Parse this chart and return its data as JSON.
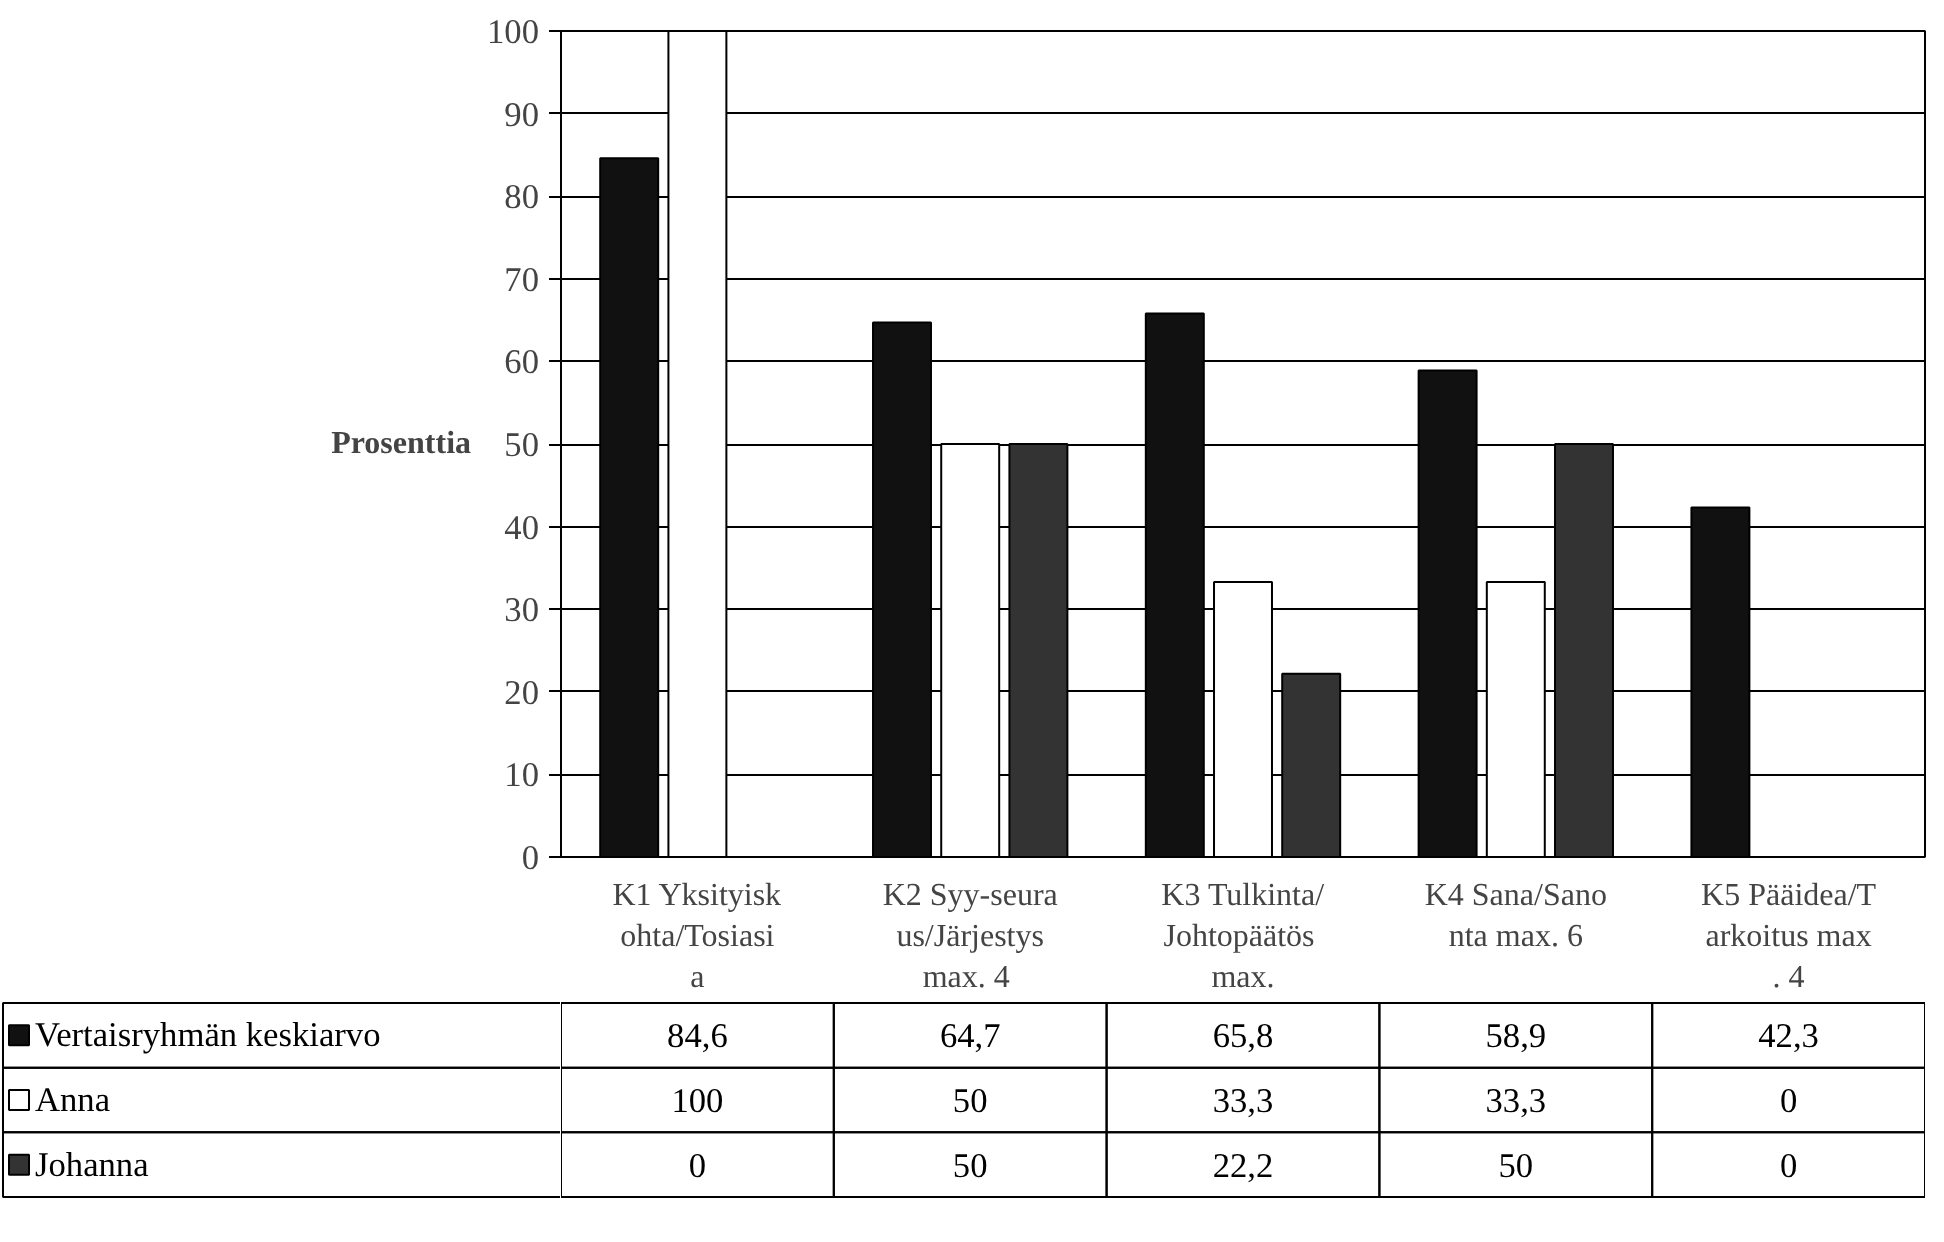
{
  "chart_data": {
    "type": "bar",
    "ylabel": "Prosenttia",
    "categories": [
      "K1 Yksityiskohta/Tosiasia",
      "K2 Syy-seuraus/Järjestys max. 4",
      "K3 Tulkinta/Johtopäätös max.",
      "K4 Sana/Sanonta max. 6",
      "K5 Pääidea/Tarkoitus max. 4"
    ],
    "series": [
      {
        "name": "Vertaisryhmän keskiarvo",
        "color": "#111111",
        "values": [
          84.6,
          64.7,
          65.8,
          58.9,
          42.3
        ],
        "value_labels": [
          "84,6",
          "64,7",
          "65,8",
          "58,9",
          "42,3"
        ]
      },
      {
        "name": "Anna",
        "color": "#ffffff",
        "values": [
          100,
          50,
          33.3,
          33.3,
          0
        ],
        "value_labels": [
          "100",
          "50",
          "33,3",
          "33,3",
          "0"
        ]
      },
      {
        "name": "Johanna",
        "color": "#333333",
        "values": [
          0,
          50,
          22.2,
          50,
          0
        ],
        "value_labels": [
          "0",
          "50",
          "22,2",
          "50",
          "0"
        ]
      }
    ],
    "ylim": [
      0,
      100
    ],
    "yticks": [
      0,
      10,
      20,
      30,
      40,
      50,
      60,
      70,
      80,
      90,
      100
    ],
    "grid": "y",
    "legend": "bottom left"
  }
}
